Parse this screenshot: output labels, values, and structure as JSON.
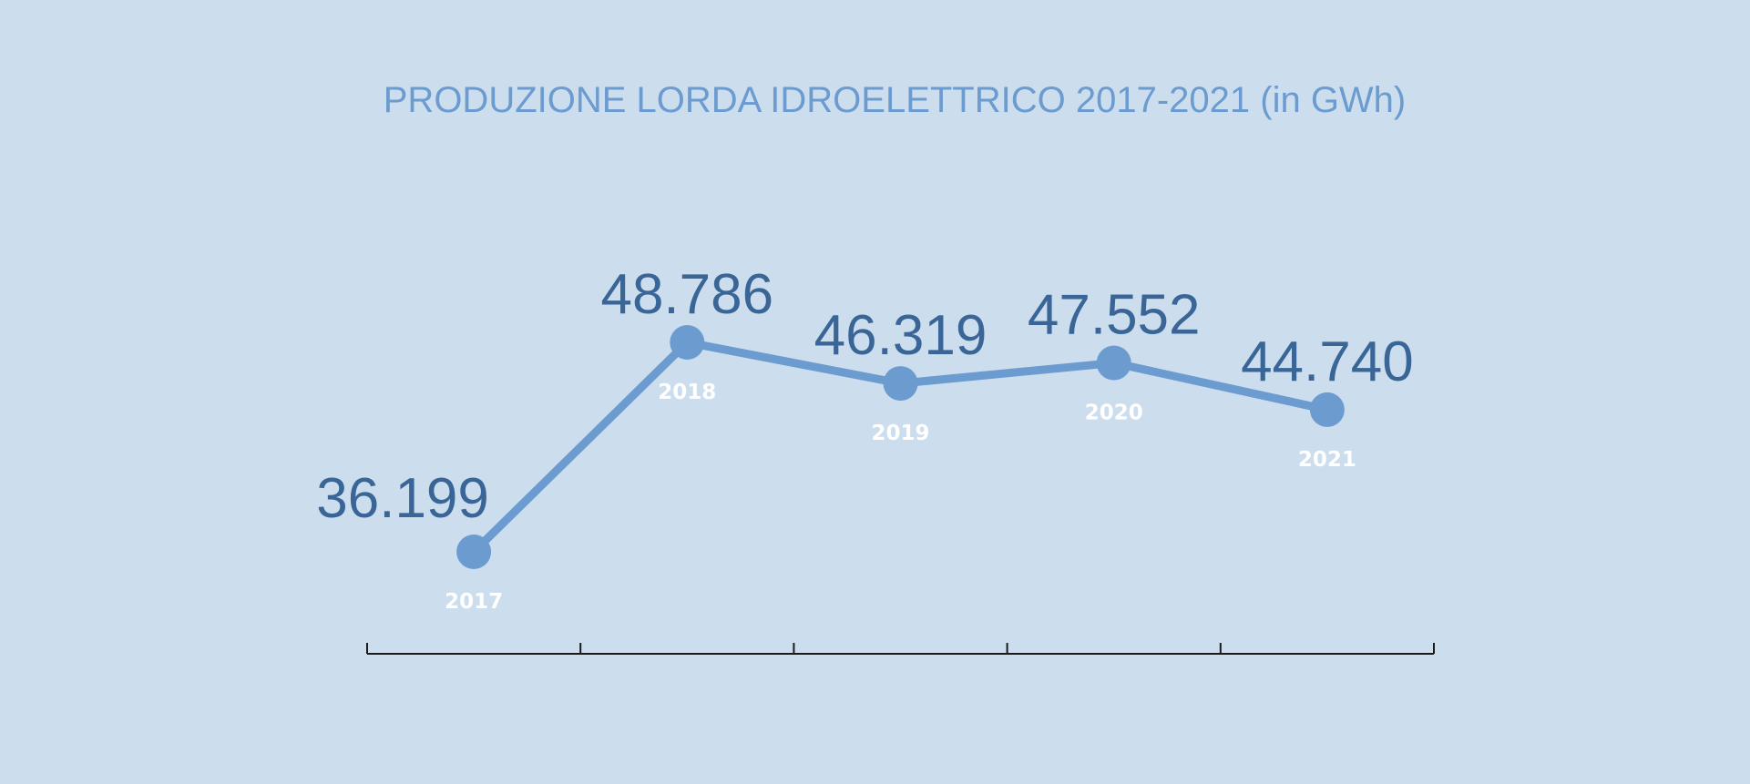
{
  "chart_data": {
    "type": "line",
    "title": "PRODUZIONE LORDA IDROELETTRICO 2017-2021 (in GWh)",
    "categories": [
      "2017",
      "2018",
      "2019",
      "2020",
      "2021"
    ],
    "values": [
      36199,
      48786,
      46319,
      47552,
      44740
    ],
    "value_labels": [
      "36.199",
      "48.786",
      "46.319",
      "47.552",
      "44.740"
    ],
    "xlabel": "",
    "ylabel": "",
    "grid": false,
    "legend": "none",
    "colors": {
      "background": "#ccdeee",
      "line": "#6b9bcf",
      "title": "#6b9bcf",
      "value_text": "#3a6597",
      "year_text": "#ffffff",
      "axis": "#1a1a1a"
    }
  }
}
